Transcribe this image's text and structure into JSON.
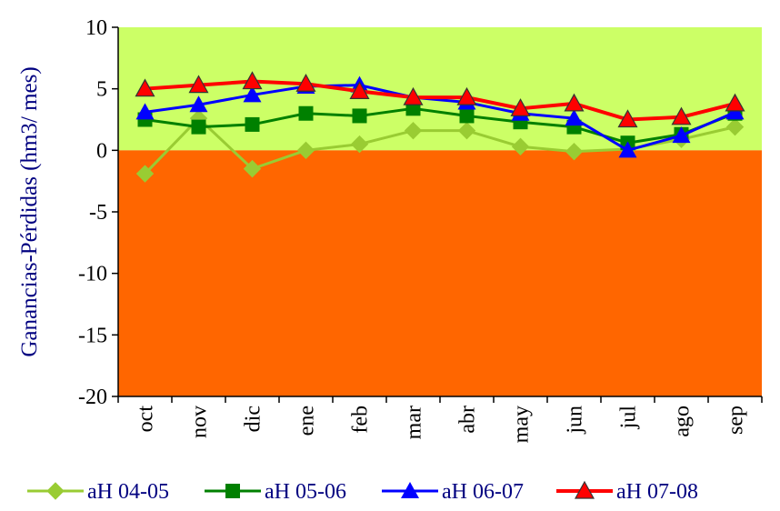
{
  "chart_data": {
    "type": "line",
    "title": "",
    "xlabel": "",
    "ylabel": "Ganancias-Pérdidas (hm3/ mes)",
    "ylim": [
      -20,
      10
    ],
    "yticks": [
      10,
      5,
      0,
      -5,
      -10,
      -15,
      -20
    ],
    "categories": [
      "oct",
      "nov",
      "dic",
      "ene",
      "feb",
      "mar",
      "abr",
      "may",
      "jun",
      "jul",
      "ago",
      "sep"
    ],
    "background_bands": [
      {
        "from": 0,
        "to": 10,
        "color": "#ccff66"
      },
      {
        "from": -20,
        "to": 0,
        "color": "#ff6600"
      }
    ],
    "legend_position": "bottom",
    "series": [
      {
        "name": "aH 04-05",
        "color": "#99cc33",
        "marker": "diamond",
        "values": [
          -1.9,
          2.6,
          -1.5,
          0.0,
          0.5,
          1.6,
          1.6,
          0.3,
          -0.1,
          0.1,
          0.9,
          1.9
        ]
      },
      {
        "name": "aH 05-06",
        "color": "#008000",
        "marker": "square",
        "values": [
          2.5,
          1.9,
          2.1,
          3.0,
          2.8,
          3.4,
          2.8,
          2.3,
          1.9,
          0.6,
          1.3,
          3.0
        ]
      },
      {
        "name": "aH 06-07",
        "color": "#0000ff",
        "marker": "triangle",
        "values": [
          3.1,
          3.7,
          4.5,
          5.2,
          5.3,
          4.3,
          3.9,
          3.0,
          2.6,
          0.0,
          1.2,
          3.1
        ]
      },
      {
        "name": "aH 07-08",
        "color": "#ff0000",
        "marker": "triangle-outline",
        "values": [
          5.0,
          5.3,
          5.6,
          5.4,
          4.8,
          4.3,
          4.3,
          3.4,
          3.8,
          2.5,
          2.7,
          3.8
        ]
      }
    ]
  }
}
